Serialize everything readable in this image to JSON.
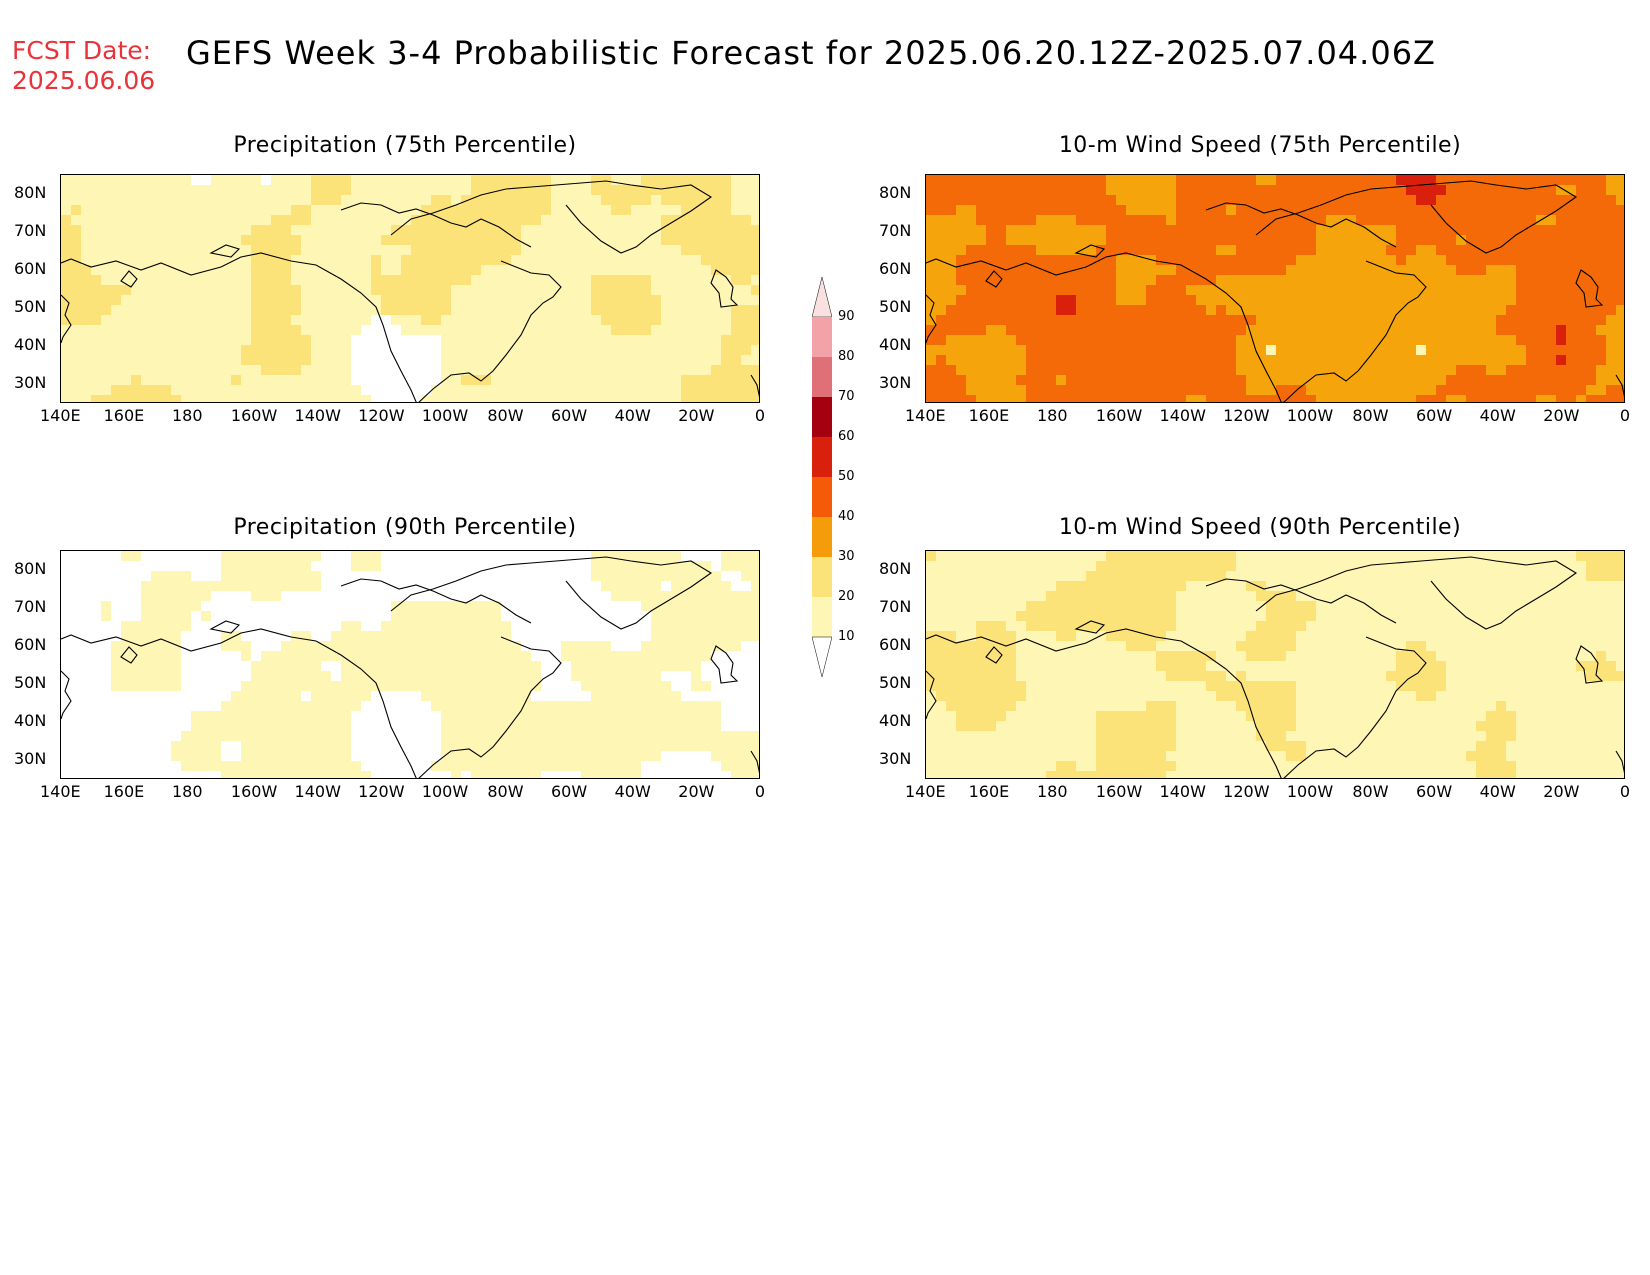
{
  "header": {
    "fcst_label": "FCST Date:",
    "fcst_date": "2025.06.06",
    "title": "GEFS Week 3-4 Probabilistic Forecast for 2025.06.20.12Z-2025.07.04.06Z"
  },
  "panels": [
    {
      "id": "p75",
      "title": "Precipitation (75th Percentile)",
      "level": "mid"
    },
    {
      "id": "w75",
      "title": "10-m Wind Speed (75th Percentile)",
      "level": "high"
    },
    {
      "id": "p90",
      "title": "Precipitation (90th Percentile)",
      "level": "low"
    },
    {
      "id": "w90",
      "title": "10-m Wind Speed (90th Percentile)",
      "level": "lowmid"
    }
  ],
  "axes": {
    "lat_labels": [
      "80N",
      "70N",
      "60N",
      "50N",
      "40N",
      "30N"
    ],
    "lon_labels": [
      "140E",
      "160E",
      "180",
      "160W",
      "140W",
      "120W",
      "100W",
      "80W",
      "60W",
      "40W",
      "20W",
      "0"
    ]
  },
  "colorbar": {
    "labels": [
      "90",
      "80",
      "70",
      "60",
      "50",
      "40",
      "30",
      "20",
      "10"
    ],
    "colors": [
      "#f3a3a8",
      "#e07078",
      "#a50010",
      "#d8200c",
      "#f55a08",
      "#f59c0a",
      "#fbe37a",
      "#fef6b4"
    ]
  },
  "palette": {
    "white": "#ffffff",
    "c10_20": "#fef6b4",
    "c20_30": "#fbe37a",
    "c30_40": "#f5a40c",
    "c40_50": "#f56a08",
    "c50_60": "#d8200c",
    "c60_70": "#a50010"
  }
}
